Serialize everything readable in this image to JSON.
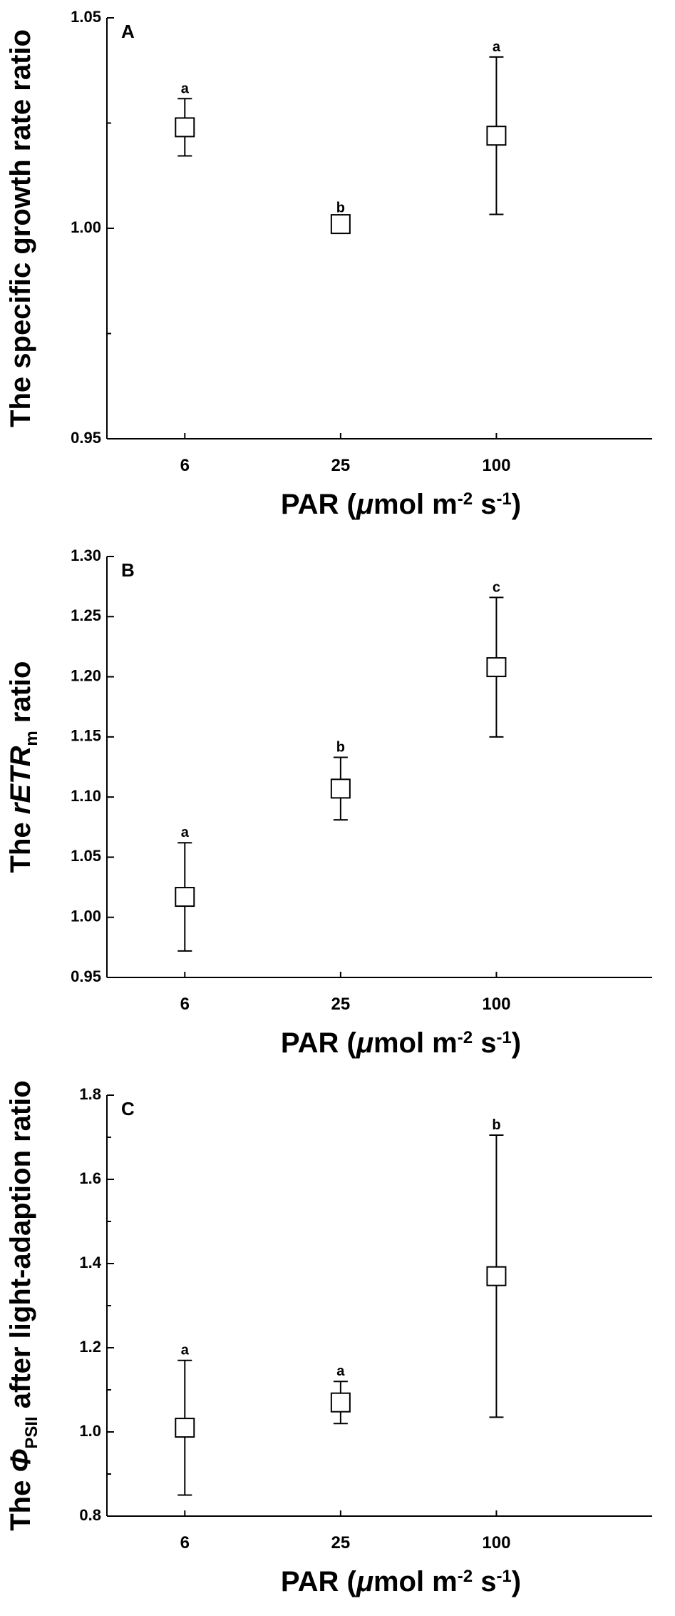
{
  "chart_data": [
    {
      "type": "scatter",
      "panel_label": "A",
      "y_label": [
        {
          "text": "The specific growth rate ratio"
        }
      ],
      "x_label": [
        {
          "text": "PAR ("
        },
        {
          "text": "μ",
          "style": "italic"
        },
        {
          "text": "mol m"
        },
        {
          "text": "-2",
          "style": "sup"
        },
        {
          "text": " s"
        },
        {
          "text": "-1",
          "style": "sup"
        },
        {
          "text": ")"
        }
      ],
      "categories": [
        "6",
        "25",
        "100"
      ],
      "values": [
        1.024,
        1.001,
        1.022
      ],
      "errors": [
        0.0068,
        0.0015,
        0.0187
      ],
      "annotations": [
        "a",
        "b",
        "a"
      ],
      "color": "#000000",
      "ylim": [
        0.95,
        1.05
      ],
      "yticks": [
        0.95,
        {
          "value": 1,
          "label": "1.00"
        },
        1.05
      ],
      "yminorticks": [
        0.975,
        1.025
      ]
    },
    {
      "type": "scatter",
      "panel_label": "B",
      "y_label": [
        {
          "text": "The "
        },
        {
          "text": "rETR",
          "style": "italic"
        },
        {
          "text": "m",
          "style": "sub"
        },
        {
          "text": " ratio"
        }
      ],
      "x_label": [
        {
          "text": "PAR ("
        },
        {
          "text": "μ",
          "style": "italic"
        },
        {
          "text": "mol m"
        },
        {
          "text": "-2",
          "style": "sup"
        },
        {
          "text": " s"
        },
        {
          "text": "-1",
          "style": "sup"
        },
        {
          "text": ")"
        }
      ],
      "categories": [
        "6",
        "25",
        "100"
      ],
      "values": [
        1.017,
        1.107,
        1.208
      ],
      "errors": [
        0.045,
        0.026,
        0.058
      ],
      "annotations": [
        "a",
        "b",
        "c"
      ],
      "color": "#000000",
      "ylim": [
        0.95,
        1.3
      ],
      "yticks": [
        0.95,
        {
          "value": 1,
          "label": "1.00"
        },
        1.05,
        {
          "value": 1.1,
          "label": "1.10"
        },
        1.15,
        {
          "value": 1.2,
          "label": "1.20"
        },
        1.25,
        {
          "value": 1.3,
          "label": "1.30"
        }
      ],
      "yminorticks": []
    },
    {
      "type": "scatter",
      "panel_label": "C",
      "y_label": [
        {
          "text": "The "
        },
        {
          "text": "Φ",
          "style": "italic"
        },
        {
          "text": "PSII",
          "style": "sub"
        },
        {
          "text": " after light-adaption ratio"
        }
      ],
      "x_label": [
        {
          "text": "PAR ("
        },
        {
          "text": "μ",
          "style": "italic"
        },
        {
          "text": "mol m"
        },
        {
          "text": "-2",
          "style": "sup"
        },
        {
          "text": " s"
        },
        {
          "text": "-1",
          "style": "sup"
        },
        {
          "text": ")"
        }
      ],
      "categories": [
        "6",
        "25",
        "100"
      ],
      "values": [
        1.01,
        1.07,
        1.37
      ],
      "errors": [
        0.16,
        0.05,
        0.335
      ],
      "annotations": [
        "a",
        "a",
        "b"
      ],
      "color": "#000000",
      "ylim": [
        0.8,
        1.8
      ],
      "yticks": [
        0.8,
        {
          "value": 1,
          "label": "1.0"
        },
        1.2,
        1.4,
        1.6,
        1.8
      ],
      "yminorticks": [
        0.9,
        1.1,
        1.3,
        1.5,
        1.7
      ]
    }
  ]
}
